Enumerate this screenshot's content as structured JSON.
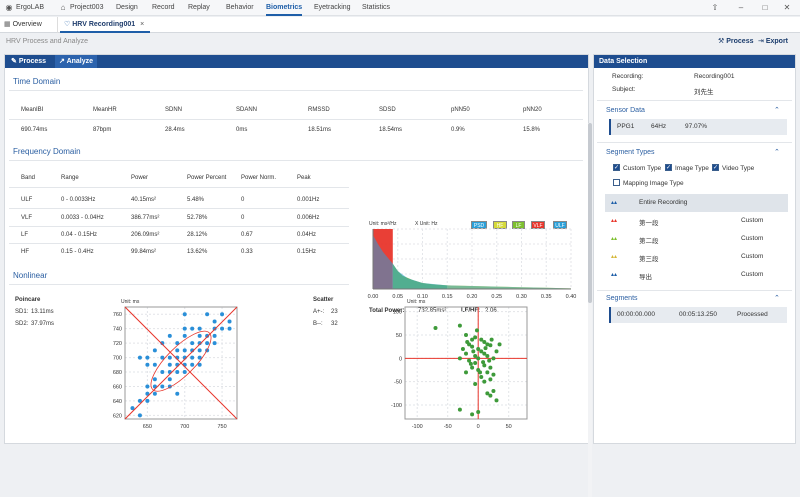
{
  "menu": {
    "app": "ErgoLAB",
    "project": "Project003",
    "items": [
      "Design",
      "Record",
      "Replay",
      "Behavior",
      "Biometrics",
      "Eyetracking",
      "Statistics"
    ],
    "active": "Biometrics"
  },
  "tabs": {
    "overview": "Overview",
    "recording": "HRV Recording001"
  },
  "breadcrumb": "HRV Process and Analyze",
  "actions": {
    "process": "Process",
    "export": "Export"
  },
  "left_tabs": {
    "process": "Process",
    "analyze": "Analyze"
  },
  "time_domain": {
    "title": "Time Domain",
    "headers": [
      "MeanIBI",
      "MeanHR",
      "SDNN",
      "SDANN",
      "RMSSD",
      "SDSD",
      "pNN50",
      "pNN20"
    ],
    "values": [
      "690.74ms",
      "87bpm",
      "28.4ms",
      "0ms",
      "18.51ms",
      "18.54ms",
      "0.9%",
      "15.8%"
    ]
  },
  "frequency_domain": {
    "title": "Frequency Domain",
    "headers": [
      "Band",
      "Range",
      "Power",
      "Power Percent",
      "Power Norm.",
      "Peak"
    ],
    "rows": [
      [
        "ULF",
        "0 - 0.0033Hz",
        "40.15ms²",
        "5.48%",
        "0",
        "0.001Hz"
      ],
      [
        "VLF",
        "0.0033 - 0.04Hz",
        "386.77ms²",
        "52.78%",
        "0",
        "0.006Hz"
      ],
      [
        "LF",
        "0.04 - 0.15Hz",
        "206.09ms²",
        "28.12%",
        "0.67",
        "0.04Hz"
      ],
      [
        "HF",
        "0.15 - 0.4Hz",
        "99.84ms²",
        "13.62%",
        "0.33",
        "0.15Hz"
      ]
    ]
  },
  "psd_chart": {
    "y_unit": "Unit: ms²/Hz",
    "x_unit": "X Unit: Hz",
    "legend": [
      "PSD",
      "HF",
      "LF",
      "VLF",
      "ULF"
    ],
    "total_power_label": "Total Power:",
    "total_power": "732.85ms²",
    "lfhf_label": "LF/HF:",
    "lfhf": "2.06"
  },
  "nonlinear": {
    "title": "Nonlinear",
    "poincare_title": "Poincare",
    "sd1_label": "SD1:",
    "sd1": "13.11ms",
    "sd2_label": "SD2:",
    "sd2": "37.97ms",
    "poincare_unit": "Unit: ms",
    "scatter_title": "Scatter",
    "a_label": "A+-:",
    "a_value": "23",
    "b_label": "B--:",
    "b_value": "32",
    "scatter_unit": "Unit: ms"
  },
  "colors": {
    "accent": "#1e4d8f",
    "ulf": "#2a9fd8",
    "vlf": "#e8352b",
    "lf": "#7dbf2e",
    "hf": "#d5d93a",
    "scatter": "#3e9a3a",
    "poincare": "#2a8fd8"
  },
  "chart_data": [
    {
      "type": "area",
      "title": "",
      "xlabel": "X Unit: Hz",
      "ylabel": "Unit: ms²/Hz",
      "xlim": [
        0,
        0.4
      ],
      "x_ticks": [
        "0.00",
        "0.05",
        "0.10",
        "0.15",
        "0.20",
        "0.25",
        "0.30",
        "0.35",
        "0.40"
      ],
      "series": [
        {
          "name": "VLF",
          "x": [
            0.0,
            0.005,
            0.01,
            0.02,
            0.03,
            0.04
          ],
          "y": [
            100,
            100,
            100,
            100,
            100,
            100
          ]
        },
        {
          "name": "LF",
          "x": [
            0.04,
            0.05,
            0.06,
            0.08,
            0.1,
            0.12,
            0.15
          ],
          "y": [
            42,
            30,
            22,
            15,
            10,
            8,
            6
          ]
        },
        {
          "name": "HF",
          "x": [
            0.15,
            0.2,
            0.25,
            0.3,
            0.35,
            0.4
          ],
          "y": [
            6,
            5,
            4,
            3,
            2,
            1
          ]
        },
        {
          "name": "PSD",
          "x": [
            0.0,
            0.01,
            0.02,
            0.03,
            0.04,
            0.05,
            0.07,
            0.1,
            0.15,
            0.2,
            0.25,
            0.3,
            0.35,
            0.4
          ],
          "y": [
            90,
            75,
            62,
            52,
            42,
            30,
            18,
            10,
            6,
            5,
            4,
            3,
            2,
            1
          ]
        }
      ]
    },
    {
      "type": "scatter",
      "title": "Poincare",
      "xlabel": "",
      "ylabel": "Unit: ms",
      "xlim": [
        620,
        770
      ],
      "ylim": [
        615,
        770
      ],
      "x_ticks": [
        "650",
        "700",
        "750"
      ],
      "y_ticks": [
        "620",
        "640",
        "660",
        "680",
        "700",
        "720",
        "740",
        "760"
      ],
      "points": [
        [
          640,
          620
        ],
        [
          640,
          640
        ],
        [
          650,
          640
        ],
        [
          650,
          650
        ],
        [
          650,
          660
        ],
        [
          660,
          650
        ],
        [
          660,
          660
        ],
        [
          660,
          670
        ],
        [
          670,
          660
        ],
        [
          670,
          680
        ],
        [
          680,
          670
        ],
        [
          680,
          680
        ],
        [
          680,
          690
        ],
        [
          690,
          680
        ],
        [
          690,
          690
        ],
        [
          690,
          700
        ],
        [
          700,
          690
        ],
        [
          700,
          700
        ],
        [
          700,
          710
        ],
        [
          710,
          700
        ],
        [
          710,
          710
        ],
        [
          710,
          720
        ],
        [
          720,
          710
        ],
        [
          720,
          720
        ],
        [
          720,
          730
        ],
        [
          730,
          720
        ],
        [
          730,
          730
        ],
        [
          740,
          730
        ],
        [
          740,
          740
        ],
        [
          750,
          740
        ],
        [
          760,
          750
        ],
        [
          670,
          700
        ],
        [
          680,
          700
        ],
        [
          690,
          710
        ],
        [
          700,
          680
        ],
        [
          710,
          690
        ],
        [
          690,
          720
        ],
        [
          700,
          730
        ],
        [
          660,
          690
        ],
        [
          720,
          700
        ],
        [
          730,
          710
        ],
        [
          740,
          750
        ],
        [
          650,
          700
        ],
        [
          680,
          730
        ],
        [
          700,
          740
        ],
        [
          720,
          740
        ],
        [
          740,
          720
        ],
        [
          690,
          650
        ],
        [
          670,
          720
        ],
        [
          660,
          710
        ],
        [
          710,
          740
        ],
        [
          750,
          760
        ],
        [
          730,
          760
        ],
        [
          640,
          700
        ],
        [
          650,
          690
        ],
        [
          760,
          740
        ],
        [
          700,
          760
        ],
        [
          630,
          630
        ],
        [
          720,
          690
        ],
        [
          680,
          660
        ]
      ]
    },
    {
      "type": "scatter",
      "title": "Scatter",
      "xlabel": "",
      "ylabel": "Unit: ms",
      "xlim": [
        -120,
        80
      ],
      "ylim": [
        -130,
        110
      ],
      "x_ticks": [
        "-100",
        "-50",
        "0",
        "50"
      ],
      "y_ticks": [
        "100",
        "50",
        "0",
        "-50",
        "-100"
      ],
      "points": [
        [
          -70,
          65
        ],
        [
          -30,
          70
        ],
        [
          -20,
          50
        ],
        [
          -10,
          40
        ],
        [
          -5,
          45
        ],
        [
          5,
          40
        ],
        [
          10,
          35
        ],
        [
          15,
          30
        ],
        [
          20,
          28
        ],
        [
          -15,
          30
        ],
        [
          -10,
          25
        ],
        [
          0,
          20
        ],
        [
          5,
          15
        ],
        [
          10,
          10
        ],
        [
          -20,
          10
        ],
        [
          -5,
          5
        ],
        [
          0,
          0
        ],
        [
          15,
          5
        ],
        [
          25,
          0
        ],
        [
          -15,
          -5
        ],
        [
          -5,
          -10
        ],
        [
          10,
          -15
        ],
        [
          20,
          -20
        ],
        [
          -10,
          -20
        ],
        [
          0,
          -25
        ],
        [
          15,
          -30
        ],
        [
          25,
          -35
        ],
        [
          -20,
          -30
        ],
        [
          5,
          -40
        ],
        [
          20,
          -45
        ],
        [
          10,
          -50
        ],
        [
          -5,
          -55
        ],
        [
          25,
          -70
        ],
        [
          15,
          -75
        ],
        [
          30,
          -90
        ],
        [
          -30,
          -110
        ],
        [
          -10,
          -120
        ],
        [
          0,
          -115
        ],
        [
          20,
          -80
        ],
        [
          35,
          30
        ],
        [
          -25,
          20
        ],
        [
          30,
          15
        ],
        [
          -30,
          0
        ],
        [
          8,
          -8
        ],
        [
          -8,
          15
        ],
        [
          12,
          22
        ],
        [
          -12,
          -12
        ],
        [
          18,
          -5
        ],
        [
          22,
          40
        ],
        [
          -18,
          35
        ],
        [
          3,
          -30
        ],
        [
          -2,
          60
        ]
      ]
    }
  ],
  "right": {
    "title": "Data Selection",
    "recording_label": "Recording:",
    "recording_value": "Recording001",
    "subject_label": "Subject:",
    "subject_value": "刘先生",
    "sensor_title": "Sensor Data",
    "sensor": [
      "PPG1",
      "64Hz",
      "97.07%"
    ],
    "segment_types_title": "Segment Types",
    "type_custom": "Custom Type",
    "type_image": "Image Type",
    "type_video": "Video Type",
    "type_mapping": "Mapping Image Type",
    "entire": "Entire Recording",
    "segs": [
      {
        "name": "第一段",
        "type": "Custom"
      },
      {
        "name": "第二段",
        "type": "Custom"
      },
      {
        "name": "第三段",
        "type": "Custom"
      },
      {
        "name": "导出",
        "type": "Custom"
      }
    ],
    "segments_title": "Segments",
    "segment_row": [
      "00:00:00.000",
      "00:05:13.250",
      "Processed"
    ]
  }
}
